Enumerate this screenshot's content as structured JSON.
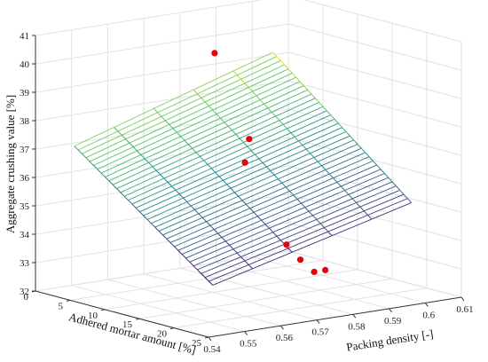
{
  "chart_data": {
    "type": "surface3d",
    "axes": {
      "x": {
        "label": "Adhered mortar amount [%]",
        "ticks": [
          "0",
          "5",
          "10",
          "15",
          "20",
          "25"
        ],
        "range": [
          0,
          25
        ]
      },
      "y": {
        "label": "Packing density [-]",
        "ticks": [
          "0.54",
          "0.55",
          "0.56",
          "0.57",
          "0.58",
          "0.59",
          "0.6",
          "0.61"
        ],
        "range": [
          0.54,
          0.61
        ]
      },
      "z": {
        "label": "Aggregate crushing value [%]",
        "ticks": [
          "32",
          "33",
          "34",
          "35",
          "36",
          "37",
          "38",
          "39",
          "40",
          "41"
        ],
        "range": [
          32,
          41
        ]
      }
    },
    "surface": {
      "x_range": [
        3,
        23
      ],
      "y_range": [
        0.545,
        0.6
      ],
      "corners": {
        "x3_y0.545": 37.2,
        "x3_y0.6": 39.4,
        "x23_y0.545": 33.6,
        "x23_y0.6": 35.4
      },
      "colormap": [
        "#440154",
        "#3b528b",
        "#21908d",
        "#5dc963",
        "#fde725"
      ]
    },
    "points": [
      {
        "x": 5,
        "y": 0.58,
        "z": 39.9
      },
      {
        "x": 10,
        "y": 0.58,
        "z": 37.2
      },
      {
        "x": 12,
        "y": 0.575,
        "z": 36.6
      },
      {
        "x": 18,
        "y": 0.575,
        "z": 34.1
      },
      {
        "x": 20,
        "y": 0.575,
        "z": 33.7
      },
      {
        "x": 22,
        "y": 0.575,
        "z": 33.4
      },
      {
        "x": 21,
        "y": 0.58,
        "z": 33.3
      }
    ],
    "point_color": "#e8000b",
    "grid": true
  }
}
